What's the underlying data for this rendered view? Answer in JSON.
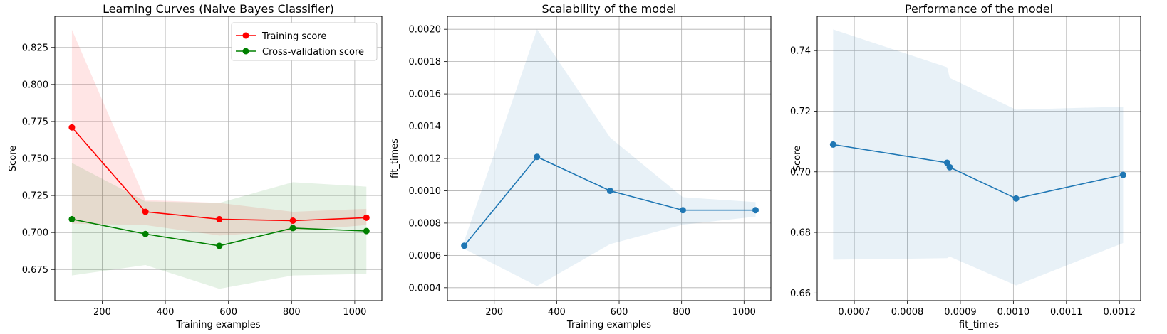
{
  "chart_data": [
    {
      "type": "line",
      "title": "Learning Curves (Naive Bayes Classifier)",
      "xlabel": "Training examples",
      "ylabel": "Score",
      "xlim": [
        50,
        1086
      ],
      "ylim": [
        0.654,
        0.846
      ],
      "xticks": [
        200,
        400,
        600,
        800,
        1000
      ],
      "yticks": [
        0.675,
        0.7,
        0.725,
        0.75,
        0.775,
        0.8,
        0.825
      ],
      "grid": true,
      "legend": "top-right",
      "x": [
        104,
        337,
        571,
        804,
        1037
      ],
      "series": [
        {
          "name": "Training score",
          "color": "#ff0000",
          "values": [
            0.771,
            0.714,
            0.709,
            0.708,
            0.71
          ],
          "band_upper": [
            0.837,
            0.722,
            0.72,
            0.714,
            0.716
          ],
          "band_lower": [
            0.706,
            0.705,
            0.698,
            0.701,
            0.705
          ],
          "band_color": "#ff0000"
        },
        {
          "name": "Cross-validation score",
          "color": "#008000",
          "values": [
            0.709,
            0.699,
            0.691,
            0.703,
            0.701
          ],
          "band_upper": [
            0.747,
            0.721,
            0.72,
            0.734,
            0.731
          ],
          "band_lower": [
            0.671,
            0.678,
            0.662,
            0.671,
            0.672
          ],
          "band_color": "#008000"
        }
      ]
    },
    {
      "type": "line",
      "title": "Scalability of the model",
      "xlabel": "Training examples",
      "ylabel": "fit_times",
      "xlim": [
        50,
        1086
      ],
      "ylim": [
        0.00032,
        0.00208
      ],
      "xticks": [
        200,
        400,
        600,
        800,
        1000
      ],
      "yticks": [
        0.0004,
        0.0006,
        0.0008,
        0.001,
        0.0012,
        0.0014,
        0.0016,
        0.0018,
        0.002
      ],
      "grid": true,
      "x": [
        104,
        337,
        571,
        804,
        1037
      ],
      "series": [
        {
          "color": "#1f77b4",
          "values": [
            0.00066,
            0.00121,
            0.001,
            0.00088,
            0.00088
          ],
          "band_upper": [
            0.00069,
            0.002,
            0.00133,
            0.00096,
            0.00093
          ],
          "band_lower": [
            0.00064,
            0.00041,
            0.00067,
            0.00079,
            0.00084
          ],
          "band_color": "#1f77b4"
        }
      ]
    },
    {
      "type": "line",
      "title": "Performance of the model",
      "xlabel": "fit_times",
      "ylabel": "Score",
      "xlim": [
        0.00063,
        0.00124
      ],
      "ylim": [
        0.6575,
        0.7513
      ],
      "xticks": [
        0.0007,
        0.0008,
        0.0009,
        0.001,
        0.0011,
        0.0012
      ],
      "yticks": [
        0.66,
        0.68,
        0.7,
        0.72,
        0.74
      ],
      "grid": true,
      "x": [
        0.00066,
        0.000875,
        0.00088,
        0.001005,
        0.001207
      ],
      "series": [
        {
          "color": "#1f77b4",
          "values": [
            0.709,
            0.703,
            0.7015,
            0.6912,
            0.699
          ],
          "band_upper": [
            0.747,
            0.7345,
            0.731,
            0.7205,
            0.7215
          ],
          "band_lower": [
            0.671,
            0.6715,
            0.672,
            0.6625,
            0.6765
          ],
          "band_color": "#1f77b4"
        }
      ]
    }
  ]
}
